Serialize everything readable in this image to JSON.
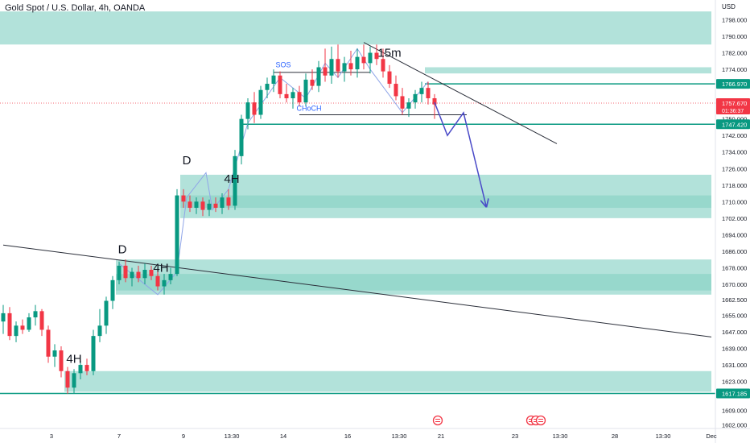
{
  "chart_data": {
    "type": "candlestick",
    "title": "Gold Spot / U.S. Dollar, 4h, OANDA",
    "currency": "USD",
    "ylim": [
      1600,
      1805
    ],
    "xlim": [
      0,
      110
    ],
    "y_ticks": [
      1602,
      1609,
      1617,
      1623,
      1631,
      1639,
      1647,
      1655,
      1662.5,
      1670,
      1678,
      1686,
      1694,
      1702,
      1710,
      1718,
      1726,
      1734,
      1742,
      1750,
      1758,
      1766,
      1774,
      1782,
      1790,
      1798
    ],
    "y_tick_labels": [
      "1602.000",
      "1609.000",
      "1617.000",
      "1623.000",
      "1631.000",
      "1639.000",
      "1647.000",
      "1655.000",
      "1662.500",
      "1670.000",
      "1678.000",
      "1686.000",
      "1694.000",
      "1702.000",
      "1710.000",
      "1718.000",
      "1726.000",
      "1734.000",
      "1742.000",
      "1750.000",
      "1758.000",
      "1766.000",
      "1774.000",
      "1782.000",
      "1790.000",
      "1798.000"
    ],
    "x_ticks": [
      {
        "x": 7.5,
        "label": "3"
      },
      {
        "x": 18,
        "label": "7"
      },
      {
        "x": 28,
        "label": "9"
      },
      {
        "x": 35.5,
        "label": "13:30"
      },
      {
        "x": 43.5,
        "label": "14"
      },
      {
        "x": 53.5,
        "label": "16"
      },
      {
        "x": 61.5,
        "label": "13:30"
      },
      {
        "x": 68,
        "label": "21"
      },
      {
        "x": 79.5,
        "label": "23"
      },
      {
        "x": 86.5,
        "label": "13:30"
      },
      {
        "x": 95,
        "label": "28"
      },
      {
        "x": 102.5,
        "label": "13:30"
      },
      {
        "x": 110,
        "label": "Dec"
      }
    ],
    "current_price": {
      "value": 1757.67,
      "label": "1757.670",
      "countdown": "01:36:37",
      "color": "#f23645"
    },
    "price_levels": [
      {
        "value": 1766.97,
        "label": "1766.970",
        "color": "#089981"
      },
      {
        "value": 1747.42,
        "label": "1747.420",
        "color": "#089981"
      },
      {
        "value": 1617.185,
        "label": "1617.185",
        "color": "#089981"
      }
    ],
    "zones": [
      {
        "x0": 0,
        "x1": 110,
        "y0": 1786,
        "y1": 1802,
        "color": "#b2e2da"
      },
      {
        "x0": 66,
        "x1": 110,
        "y0": 1772,
        "y1": 1775,
        "color": "#b2e2da"
      },
      {
        "x0": 28,
        "x1": 110,
        "y0": 1702,
        "y1": 1723,
        "color": "#b2e2da"
      },
      {
        "x0": 28,
        "x1": 110,
        "y0": 1707,
        "y1": 1713,
        "color": "#97d8cc"
      },
      {
        "x0": 18,
        "x1": 110,
        "y0": 1665,
        "y1": 1682,
        "color": "#b2e2da"
      },
      {
        "x0": 18,
        "x1": 110,
        "y0": 1667,
        "y1": 1675,
        "color": "#97d8cc"
      },
      {
        "x0": 10,
        "x1": 110,
        "y0": 1618,
        "y1": 1628,
        "color": "#b2e2da"
      }
    ],
    "candles": [
      {
        "x": 0,
        "o": 1652,
        "h": 1660,
        "l": 1646,
        "c": 1656
      },
      {
        "x": 1,
        "o": 1656,
        "h": 1659,
        "l": 1643,
        "c": 1645
      },
      {
        "x": 2,
        "o": 1645,
        "h": 1652,
        "l": 1642,
        "c": 1650
      },
      {
        "x": 3,
        "o": 1650,
        "h": 1653,
        "l": 1646,
        "c": 1648
      },
      {
        "x": 4,
        "o": 1648,
        "h": 1656,
        "l": 1647,
        "c": 1654
      },
      {
        "x": 5,
        "o": 1654,
        "h": 1660,
        "l": 1650,
        "c": 1657
      },
      {
        "x": 6,
        "o": 1657,
        "h": 1658,
        "l": 1645,
        "c": 1648
      },
      {
        "x": 7,
        "o": 1648,
        "h": 1650,
        "l": 1632,
        "c": 1635
      },
      {
        "x": 8,
        "o": 1635,
        "h": 1641,
        "l": 1630,
        "c": 1638
      },
      {
        "x": 9,
        "o": 1638,
        "h": 1640,
        "l": 1625,
        "c": 1628
      },
      {
        "x": 10,
        "o": 1628,
        "h": 1630,
        "l": 1617,
        "c": 1620
      },
      {
        "x": 11,
        "o": 1620,
        "h": 1629,
        "l": 1617,
        "c": 1627
      },
      {
        "x": 12,
        "o": 1627,
        "h": 1633,
        "l": 1624,
        "c": 1631
      },
      {
        "x": 13,
        "o": 1631,
        "h": 1634,
        "l": 1626,
        "c": 1628
      },
      {
        "x": 14,
        "o": 1628,
        "h": 1648,
        "l": 1626,
        "c": 1645
      },
      {
        "x": 15,
        "o": 1645,
        "h": 1658,
        "l": 1642,
        "c": 1650
      },
      {
        "x": 16,
        "o": 1650,
        "h": 1664,
        "l": 1646,
        "c": 1662
      },
      {
        "x": 17,
        "o": 1662,
        "h": 1674,
        "l": 1658,
        "c": 1672
      },
      {
        "x": 18,
        "o": 1672,
        "h": 1681,
        "l": 1670,
        "c": 1679
      },
      {
        "x": 19,
        "o": 1679,
        "h": 1682,
        "l": 1671,
        "c": 1673
      },
      {
        "x": 20,
        "o": 1673,
        "h": 1678,
        "l": 1669,
        "c": 1676
      },
      {
        "x": 21,
        "o": 1676,
        "h": 1679,
        "l": 1671,
        "c": 1673
      },
      {
        "x": 22,
        "o": 1673,
        "h": 1680,
        "l": 1670,
        "c": 1677
      },
      {
        "x": 23,
        "o": 1677,
        "h": 1679,
        "l": 1672,
        "c": 1674
      },
      {
        "x": 24,
        "o": 1674,
        "h": 1678,
        "l": 1667,
        "c": 1669
      },
      {
        "x": 25,
        "o": 1669,
        "h": 1675,
        "l": 1665,
        "c": 1672
      },
      {
        "x": 26,
        "o": 1672,
        "h": 1678,
        "l": 1670,
        "c": 1675
      },
      {
        "x": 27,
        "o": 1675,
        "h": 1716,
        "l": 1674,
        "c": 1713
      },
      {
        "x": 28,
        "o": 1713,
        "h": 1716,
        "l": 1707,
        "c": 1710
      },
      {
        "x": 29,
        "o": 1710,
        "h": 1713,
        "l": 1705,
        "c": 1707
      },
      {
        "x": 30,
        "o": 1707,
        "h": 1712,
        "l": 1704,
        "c": 1710
      },
      {
        "x": 31,
        "o": 1710,
        "h": 1712,
        "l": 1703,
        "c": 1706
      },
      {
        "x": 32,
        "o": 1706,
        "h": 1711,
        "l": 1703,
        "c": 1709
      },
      {
        "x": 33,
        "o": 1709,
        "h": 1712,
        "l": 1705,
        "c": 1707
      },
      {
        "x": 34,
        "o": 1707,
        "h": 1714,
        "l": 1704,
        "c": 1712
      },
      {
        "x": 35,
        "o": 1712,
        "h": 1716,
        "l": 1706,
        "c": 1708
      },
      {
        "x": 36,
        "o": 1708,
        "h": 1735,
        "l": 1706,
        "c": 1732
      },
      {
        "x": 37,
        "o": 1732,
        "h": 1752,
        "l": 1728,
        "c": 1750
      },
      {
        "x": 38,
        "o": 1750,
        "h": 1760,
        "l": 1745,
        "c": 1758
      },
      {
        "x": 39,
        "o": 1758,
        "h": 1763,
        "l": 1748,
        "c": 1752
      },
      {
        "x": 40,
        "o": 1752,
        "h": 1766,
        "l": 1750,
        "c": 1764
      },
      {
        "x": 41,
        "o": 1764,
        "h": 1770,
        "l": 1760,
        "c": 1767
      },
      {
        "x": 42,
        "o": 1767,
        "h": 1774,
        "l": 1763,
        "c": 1771
      },
      {
        "x": 43,
        "o": 1771,
        "h": 1773,
        "l": 1760,
        "c": 1762
      },
      {
        "x": 44,
        "o": 1762,
        "h": 1767,
        "l": 1758,
        "c": 1760
      },
      {
        "x": 45,
        "o": 1760,
        "h": 1765,
        "l": 1755,
        "c": 1763
      },
      {
        "x": 46,
        "o": 1763,
        "h": 1766,
        "l": 1756,
        "c": 1758
      },
      {
        "x": 47,
        "o": 1758,
        "h": 1772,
        "l": 1756,
        "c": 1769
      },
      {
        "x": 48,
        "o": 1769,
        "h": 1774,
        "l": 1764,
        "c": 1766
      },
      {
        "x": 49,
        "o": 1766,
        "h": 1778,
        "l": 1763,
        "c": 1775
      },
      {
        "x": 50,
        "o": 1775,
        "h": 1784,
        "l": 1768,
        "c": 1771
      },
      {
        "x": 51,
        "o": 1771,
        "h": 1785,
        "l": 1767,
        "c": 1779
      },
      {
        "x": 52,
        "o": 1779,
        "h": 1786,
        "l": 1770,
        "c": 1773
      },
      {
        "x": 53,
        "o": 1773,
        "h": 1780,
        "l": 1768,
        "c": 1777
      },
      {
        "x": 54,
        "o": 1777,
        "h": 1783,
        "l": 1771,
        "c": 1774
      },
      {
        "x": 55,
        "o": 1774,
        "h": 1784,
        "l": 1770,
        "c": 1780
      },
      {
        "x": 56,
        "o": 1780,
        "h": 1786,
        "l": 1774,
        "c": 1777
      },
      {
        "x": 57,
        "o": 1777,
        "h": 1785,
        "l": 1772,
        "c": 1782
      },
      {
        "x": 58,
        "o": 1782,
        "h": 1786,
        "l": 1776,
        "c": 1779
      },
      {
        "x": 59,
        "o": 1779,
        "h": 1784,
        "l": 1770,
        "c": 1773
      },
      {
        "x": 60,
        "o": 1773,
        "h": 1776,
        "l": 1765,
        "c": 1767
      },
      {
        "x": 61,
        "o": 1767,
        "h": 1771,
        "l": 1759,
        "c": 1761
      },
      {
        "x": 62,
        "o": 1761,
        "h": 1765,
        "l": 1752,
        "c": 1755
      },
      {
        "x": 63,
        "o": 1755,
        "h": 1760,
        "l": 1751,
        "c": 1758
      },
      {
        "x": 64,
        "o": 1758,
        "h": 1764,
        "l": 1755,
        "c": 1762
      },
      {
        "x": 65,
        "o": 1762,
        "h": 1768,
        "l": 1758,
        "c": 1765
      },
      {
        "x": 66,
        "o": 1765,
        "h": 1768,
        "l": 1757,
        "c": 1760
      },
      {
        "x": 67,
        "o": 1760,
        "h": 1762,
        "l": 1750,
        "c": 1757
      }
    ],
    "trendlines": [
      {
        "x0": 0,
        "y0": 1689,
        "x1": 110,
        "y1": 1644.5,
        "color": "#2a2e39",
        "width": 1
      },
      {
        "x0": 56,
        "y0": 1787,
        "x1": 86,
        "y1": 1738,
        "color": "#2a2e39",
        "width": 1
      }
    ],
    "level_lines": [
      {
        "x0": 37.5,
        "x1": 110,
        "value": 1747.42,
        "color": "#089981"
      },
      {
        "x0": 66,
        "x1": 110,
        "value": 1766.97,
        "color": "#089981"
      },
      {
        "x0": 0,
        "x1": 110,
        "value": 1617.185,
        "color": "#089981"
      }
    ],
    "structure_lines": [
      {
        "x0": 42,
        "x1": 57,
        "value": 1772.5,
        "color": "#2a2e39"
      },
      {
        "x0": 46,
        "x1": 72,
        "value": 1752,
        "color": "#2a2e39"
      }
    ],
    "zigzags": [
      {
        "color": "#8fa5e8",
        "points": [
          [
            18,
            1680
          ],
          [
            24,
            1665
          ],
          [
            27,
            1676
          ],
          [
            28.5,
            1712
          ],
          [
            31.5,
            1724
          ],
          [
            32.5,
            1706
          ],
          [
            35,
            1716
          ],
          [
            38,
            1748
          ],
          [
            43,
            1770
          ],
          [
            47,
            1760
          ],
          [
            50,
            1777
          ],
          [
            52,
            1770
          ],
          [
            55,
            1784
          ],
          [
            57,
            1774
          ],
          [
            62,
            1753
          ],
          [
            66,
            1768
          ]
        ]
      }
    ],
    "projection": {
      "color": "#4a4ac8",
      "points": [
        [
          67,
          1758
        ],
        [
          69,
          1742
        ],
        [
          71.5,
          1753
        ],
        [
          75,
          1708
        ]
      ],
      "arrow_head_at": [
        75,
        1708
      ]
    },
    "text_labels": [
      {
        "text": "D",
        "x": 28.5,
        "y": 1728,
        "size": 15,
        "color": "#131722"
      },
      {
        "text": "4H",
        "x": 35.5,
        "y": 1719,
        "size": 15,
        "color": "#131722"
      },
      {
        "text": "D",
        "x": 18.5,
        "y": 1685,
        "size": 15,
        "color": "#131722"
      },
      {
        "text": "4H",
        "x": 24.5,
        "y": 1676,
        "size": 15,
        "color": "#131722"
      },
      {
        "text": "4H",
        "x": 11,
        "y": 1632,
        "size": 15,
        "color": "#131722"
      },
      {
        "text": "15m",
        "x": 60,
        "y": 1780,
        "size": 15,
        "color": "#131722"
      },
      {
        "text": "SOS",
        "x": 43.5,
        "y": 1775,
        "size": 9,
        "color": "#2962ff"
      },
      {
        "text": "CHoCH",
        "x": 47.5,
        "y": 1754,
        "size": 9,
        "color": "#2962ff"
      }
    ],
    "event_markers": [
      {
        "x": 67.5,
        "count": 1
      },
      {
        "x": 82,
        "count": 3
      }
    ],
    "colors": {
      "up": "#089981",
      "down": "#f23645",
      "axis_text": "#131722",
      "marker": "#f23645"
    }
  }
}
